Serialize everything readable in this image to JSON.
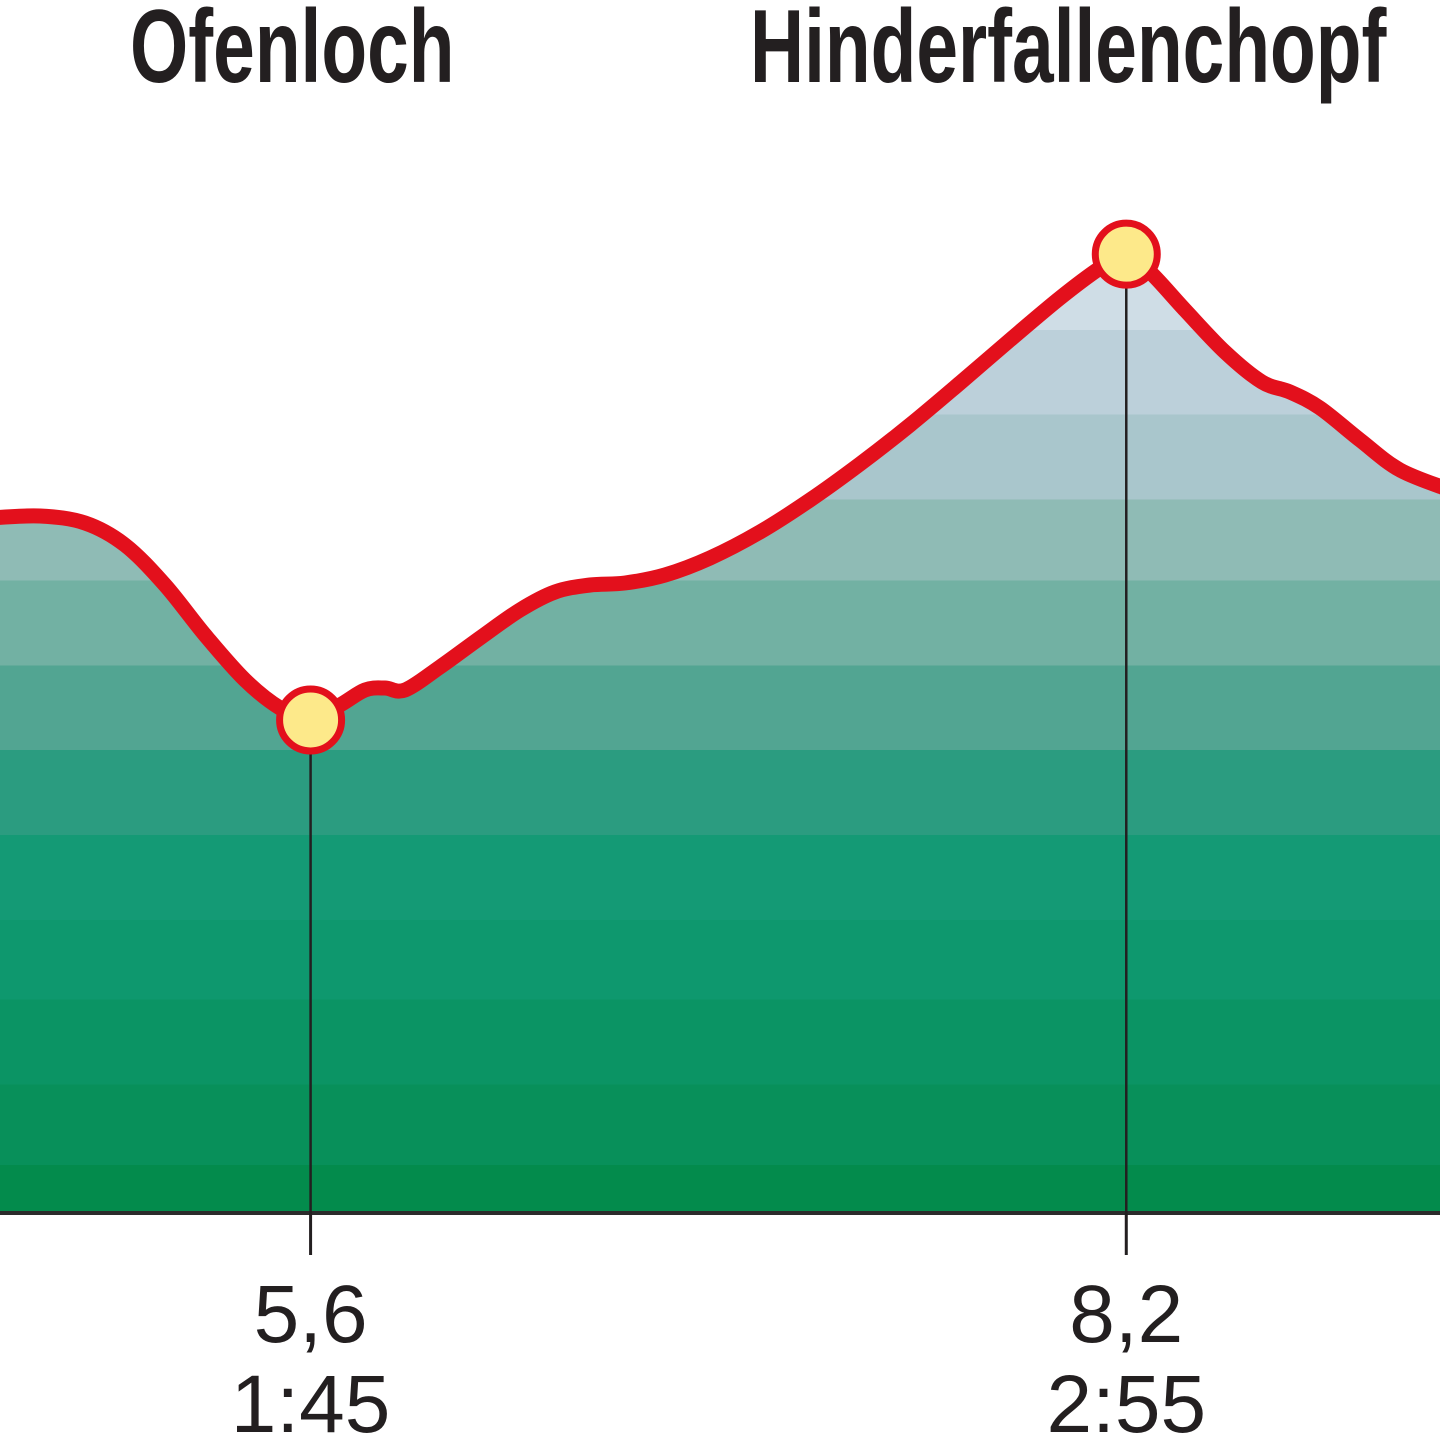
{
  "chart_data": {
    "type": "elevation-profile",
    "xlim": [
      4.61,
      9.2
    ],
    "xticks": [
      {
        "value": 5.6,
        "label": "5,6"
      },
      {
        "value": 8.2,
        "label": "8,2"
      }
    ],
    "waypoints": [
      {
        "name": "Ofenloch",
        "time": "1:45"
      },
      {
        "name": "Hinderfallenchopf",
        "time": "2:55"
      }
    ],
    "line_color": "#e3101c",
    "marker_color": "#fde98a"
  }
}
